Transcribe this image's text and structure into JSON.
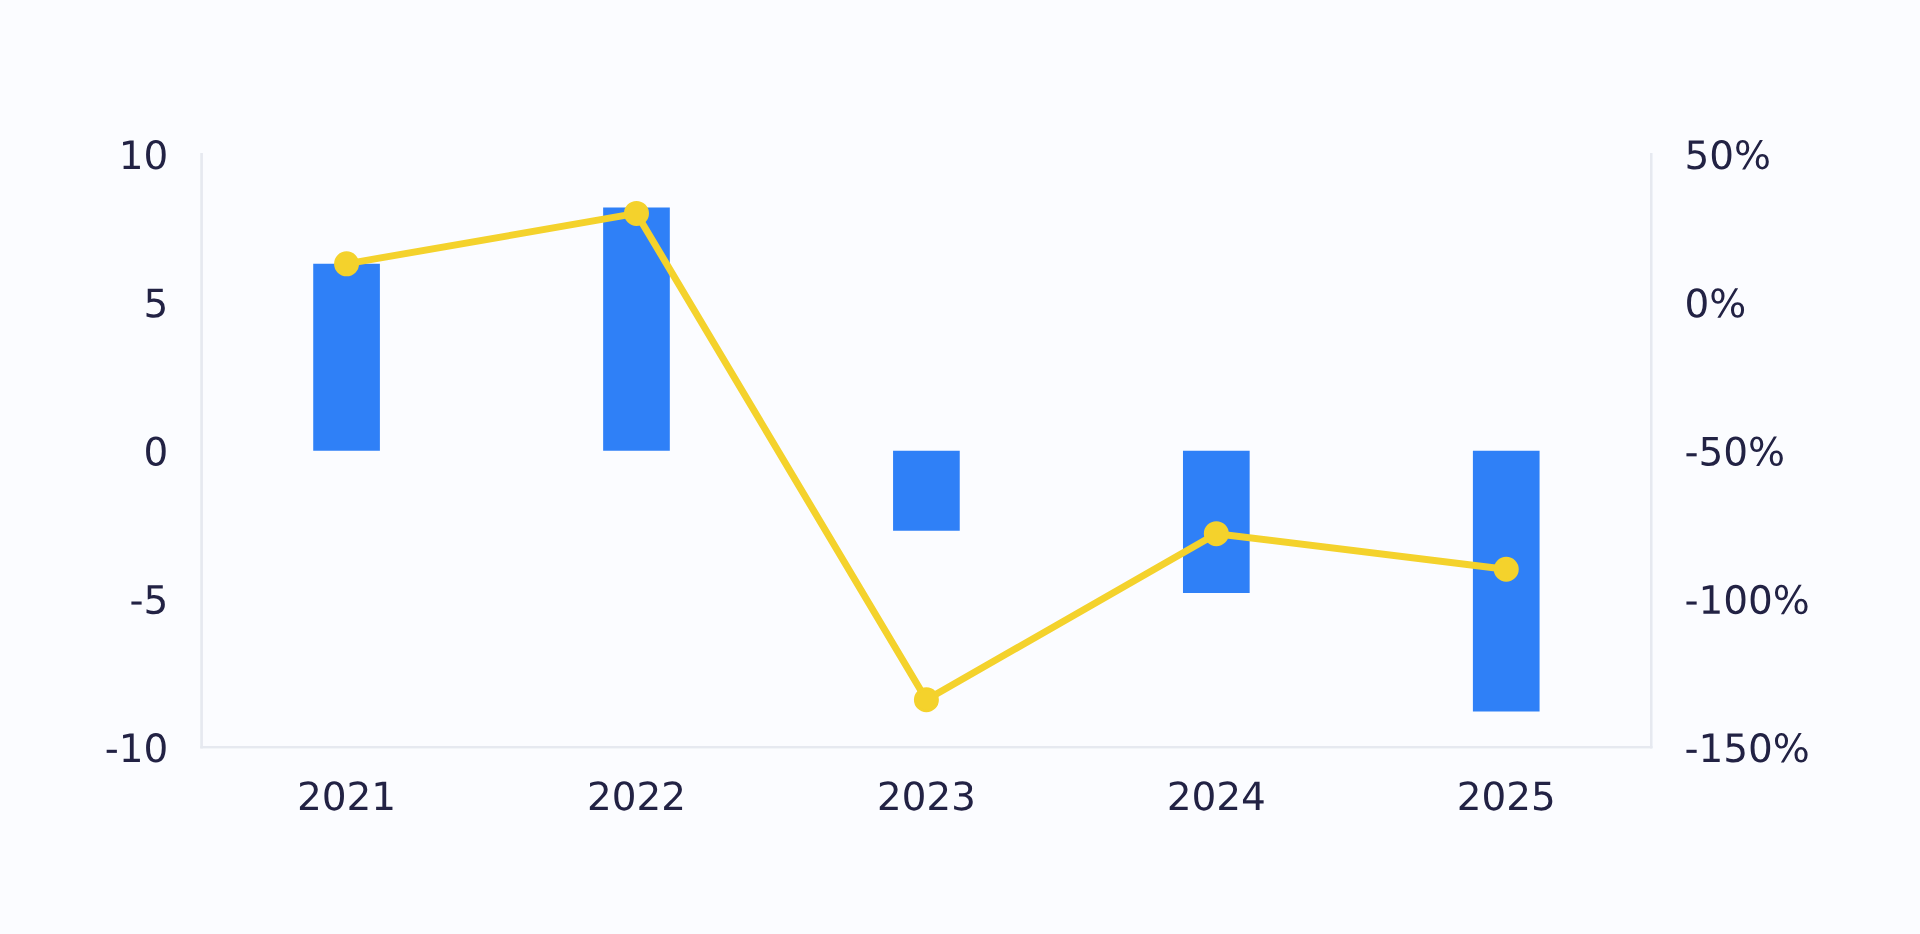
{
  "chart_data": {
    "type": "bar",
    "categories": [
      "2021",
      "2022",
      "2023",
      "2024",
      "2025"
    ],
    "series": [
      {
        "color": "#2f80f7",
        "values": [
          6.3,
          8.2,
          -2.7,
          -4.8,
          -8.8
        ]
      },
      {
        "type": "line",
        "axis": "y2",
        "color": "#f4d22c",
        "marker": "circle",
        "values": [
          13,
          30,
          -134,
          -78,
          -90
        ]
      }
    ],
    "ylim": [
      -10,
      10
    ],
    "yticks": [
      -10,
      -5,
      0,
      5,
      10
    ],
    "y2lim": [
      -150,
      50
    ],
    "y2ticks": [
      {
        "value": -150,
        "label": "-150%"
      },
      {
        "value": -100,
        "label": "-100%"
      },
      {
        "value": -50,
        "label": "-50%"
      },
      {
        "value": 0,
        "label": "0%"
      },
      {
        "value": 50,
        "label": "50%"
      }
    ],
    "grid": false,
    "legend": false
  }
}
